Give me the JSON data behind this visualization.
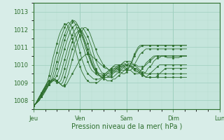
{
  "xlabel": "Pression niveau de la mer( hPa )",
  "bg_color": "#d8ede8",
  "plot_bg_color": "#c5e5dc",
  "line_color": "#2d6e2d",
  "grid_major_color": "#9ecfbe",
  "grid_minor_color": "#b8ddd0",
  "ylim": [
    1007.5,
    1013.5
  ],
  "yticks": [
    1008,
    1009,
    1010,
    1011,
    1012,
    1013
  ],
  "day_labels": [
    "Jeu",
    "Ven",
    "Sam",
    "Dim",
    "Lun"
  ],
  "day_positions": [
    0,
    24,
    48,
    72,
    96
  ],
  "total_hours": 120,
  "series": [
    [
      1007.7,
      1007.8,
      1008.0,
      1008.2,
      1008.4,
      1008.6,
      1008.8,
      1009.0,
      1009.1,
      1009.1,
      1009.2,
      1009.2,
      1009.1,
      1009.0,
      1008.9,
      1008.8,
      1008.8,
      1008.9,
      1009.1,
      1009.3,
      1009.5,
      1009.7,
      1009.9,
      1010.1,
      1010.3,
      1010.4,
      1010.5,
      1010.6,
      1010.6,
      1010.6,
      1010.5,
      1010.4,
      1010.3,
      1010.2,
      1010.1,
      1010.0,
      1009.9,
      1009.8,
      1009.8,
      1009.7,
      1009.7,
      1009.7,
      1009.7,
      1009.8,
      1009.9,
      1010.0,
      1010.1,
      1010.2,
      1010.2,
      1010.2,
      1010.2,
      1010.1,
      1010.0,
      1010.0,
      1009.9,
      1009.9,
      1009.9,
      1009.9,
      1010.0,
      1010.1,
      1010.2,
      1010.3,
      1010.4,
      1010.5,
      1010.5,
      1010.5,
      1010.5,
      1010.5,
      1010.5,
      1010.4,
      1010.4,
      1010.4,
      1010.4,
      1010.4,
      1010.4,
      1010.4,
      1010.5,
      1010.5,
      1010.5,
      1010.5
    ],
    [
      1007.7,
      1007.8,
      1008.0,
      1008.2,
      1008.4,
      1008.6,
      1008.8,
      1009.0,
      1009.1,
      1009.1,
      1009.2,
      1009.2,
      1009.1,
      1009.0,
      1008.9,
      1008.8,
      1008.9,
      1009.2,
      1009.5,
      1009.9,
      1010.3,
      1010.7,
      1011.1,
      1011.4,
      1011.7,
      1011.9,
      1012.1,
      1012.1,
      1012.0,
      1011.8,
      1011.5,
      1011.2,
      1010.9,
      1010.6,
      1010.4,
      1010.2,
      1010.0,
      1009.9,
      1009.8,
      1009.7,
      1009.6,
      1009.6,
      1009.6,
      1009.6,
      1009.7,
      1009.8,
      1009.9,
      1010.0,
      1010.0,
      1010.1,
      1010.1,
      1010.0,
      1010.0,
      1009.9,
      1009.8,
      1009.7,
      1009.6,
      1009.6,
      1009.5,
      1009.5,
      1009.5,
      1009.5,
      1009.5,
      1009.5,
      1009.5,
      1009.5,
      1009.5,
      1009.5,
      1009.5,
      1009.5,
      1009.5,
      1009.5,
      1009.5,
      1009.5,
      1009.5,
      1009.5,
      1009.5,
      1009.5,
      1009.5,
      1009.5
    ],
    [
      1007.7,
      1007.8,
      1008.0,
      1008.2,
      1008.4,
      1008.6,
      1008.7,
      1008.9,
      1009.0,
      1009.1,
      1009.1,
      1009.2,
      1009.1,
      1009.0,
      1008.9,
      1009.0,
      1009.3,
      1009.7,
      1010.1,
      1010.5,
      1010.9,
      1011.2,
      1011.5,
      1011.8,
      1012.0,
      1012.1,
      1012.0,
      1011.8,
      1011.6,
      1011.3,
      1011.0,
      1010.6,
      1010.3,
      1010.0,
      1009.8,
      1009.6,
      1009.5,
      1009.4,
      1009.4,
      1009.3,
      1009.3,
      1009.3,
      1009.4,
      1009.5,
      1009.6,
      1009.7,
      1009.8,
      1009.9,
      1010.0,
      1010.0,
      1010.0,
      1009.9,
      1009.8,
      1009.8,
      1009.7,
      1009.6,
      1009.5,
      1009.4,
      1009.3,
      1009.3,
      1009.3,
      1009.3,
      1009.3,
      1009.3,
      1009.3,
      1009.3,
      1009.3,
      1009.3,
      1009.3,
      1009.3,
      1009.3,
      1009.3,
      1009.3,
      1009.3,
      1009.3,
      1009.3,
      1009.3,
      1009.3,
      1009.3,
      1009.3
    ],
    [
      1007.7,
      1007.8,
      1008.0,
      1008.2,
      1008.4,
      1008.5,
      1008.7,
      1008.9,
      1009.0,
      1009.1,
      1009.1,
      1009.1,
      1009.0,
      1009.0,
      1009.1,
      1009.4,
      1009.8,
      1010.2,
      1010.6,
      1011.0,
      1011.3,
      1011.6,
      1011.8,
      1011.9,
      1012.0,
      1011.9,
      1011.7,
      1011.5,
      1011.2,
      1010.8,
      1010.5,
      1010.1,
      1009.8,
      1009.6,
      1009.4,
      1009.3,
      1009.2,
      1009.2,
      1009.1,
      1009.1,
      1009.1,
      1009.2,
      1009.2,
      1009.3,
      1009.4,
      1009.5,
      1009.6,
      1009.7,
      1009.8,
      1009.9,
      1009.9,
      1009.9,
      1009.8,
      1009.8,
      1009.7,
      1009.6,
      1009.5,
      1009.4,
      1009.3,
      1009.3,
      1009.3,
      1009.3,
      1009.3,
      1009.3,
      1009.4,
      1009.5,
      1009.6,
      1009.7,
      1009.8,
      1009.8,
      1009.8,
      1009.8,
      1009.8,
      1009.8,
      1009.8,
      1009.8,
      1009.8,
      1009.8,
      1009.8,
      1009.8
    ],
    [
      1007.7,
      1007.8,
      1008.0,
      1008.2,
      1008.3,
      1008.5,
      1008.7,
      1008.8,
      1009.0,
      1009.0,
      1009.1,
      1009.1,
      1009.1,
      1009.2,
      1009.5,
      1009.9,
      1010.3,
      1010.7,
      1011.1,
      1011.4,
      1011.7,
      1011.9,
      1012.1,
      1012.1,
      1012.0,
      1011.8,
      1011.5,
      1011.2,
      1010.9,
      1010.5,
      1010.2,
      1009.9,
      1009.7,
      1009.5,
      1009.4,
      1009.3,
      1009.3,
      1009.3,
      1009.3,
      1009.3,
      1009.4,
      1009.5,
      1009.6,
      1009.7,
      1009.8,
      1009.9,
      1010.0,
      1010.0,
      1010.0,
      1010.0,
      1009.9,
      1009.9,
      1009.8,
      1009.7,
      1009.6,
      1009.5,
      1009.4,
      1009.4,
      1009.3,
      1009.4,
      1009.5,
      1009.6,
      1009.7,
      1009.8,
      1009.9,
      1010.0,
      1010.0,
      1010.0,
      1010.0,
      1010.0,
      1010.0,
      1010.0,
      1010.0,
      1010.0,
      1010.0,
      1010.0,
      1010.0,
      1010.0,
      1010.0,
      1010.0
    ],
    [
      1007.7,
      1007.8,
      1007.9,
      1008.1,
      1008.3,
      1008.5,
      1008.6,
      1008.8,
      1008.9,
      1009.0,
      1009.1,
      1009.2,
      1009.4,
      1009.7,
      1010.1,
      1010.5,
      1010.9,
      1011.3,
      1011.6,
      1011.9,
      1012.1,
      1012.2,
      1012.3,
      1012.2,
      1012.0,
      1011.7,
      1011.4,
      1011.1,
      1010.7,
      1010.4,
      1010.1,
      1009.8,
      1009.6,
      1009.5,
      1009.4,
      1009.3,
      1009.3,
      1009.3,
      1009.3,
      1009.4,
      1009.5,
      1009.6,
      1009.7,
      1009.8,
      1009.9,
      1010.0,
      1010.1,
      1010.1,
      1010.0,
      1010.0,
      1009.9,
      1009.8,
      1009.7,
      1009.6,
      1009.6,
      1009.5,
      1009.5,
      1009.5,
      1009.6,
      1009.8,
      1009.9,
      1010.0,
      1010.2,
      1010.3,
      1010.4,
      1010.4,
      1010.5,
      1010.5,
      1010.5,
      1010.5,
      1010.5,
      1010.5,
      1010.5,
      1010.5,
      1010.5,
      1010.5,
      1010.5,
      1010.5,
      1010.5,
      1010.5
    ],
    [
      1007.7,
      1007.8,
      1007.9,
      1008.1,
      1008.2,
      1008.4,
      1008.6,
      1008.7,
      1008.9,
      1009.0,
      1009.2,
      1009.4,
      1009.8,
      1010.2,
      1010.6,
      1011.0,
      1011.4,
      1011.7,
      1012.0,
      1012.2,
      1012.4,
      1012.5,
      1012.4,
      1012.2,
      1011.9,
      1011.6,
      1011.3,
      1010.9,
      1010.6,
      1010.3,
      1010.0,
      1009.8,
      1009.7,
      1009.6,
      1009.5,
      1009.5,
      1009.4,
      1009.4,
      1009.5,
      1009.5,
      1009.6,
      1009.7,
      1009.8,
      1009.9,
      1010.0,
      1010.0,
      1010.0,
      1009.9,
      1009.8,
      1009.7,
      1009.7,
      1009.6,
      1009.5,
      1009.5,
      1009.5,
      1009.6,
      1009.8,
      1009.9,
      1010.1,
      1010.2,
      1010.3,
      1010.4,
      1010.5,
      1010.5,
      1010.5,
      1010.5,
      1010.5,
      1010.5,
      1010.5,
      1010.5,
      1010.5,
      1010.5,
      1010.5,
      1010.5,
      1010.5,
      1010.5,
      1010.5,
      1010.5,
      1010.5,
      1010.5
    ],
    [
      1007.7,
      1007.8,
      1007.9,
      1008.1,
      1008.2,
      1008.4,
      1008.5,
      1008.7,
      1008.9,
      1009.1,
      1009.4,
      1009.8,
      1010.2,
      1010.6,
      1011.0,
      1011.4,
      1011.7,
      1012.0,
      1012.2,
      1012.4,
      1012.5,
      1012.4,
      1012.2,
      1011.9,
      1011.6,
      1011.2,
      1010.9,
      1010.5,
      1010.2,
      1009.9,
      1009.7,
      1009.6,
      1009.5,
      1009.4,
      1009.4,
      1009.4,
      1009.4,
      1009.5,
      1009.6,
      1009.7,
      1009.8,
      1009.9,
      1010.0,
      1010.0,
      1010.0,
      1009.9,
      1009.9,
      1009.8,
      1009.7,
      1009.7,
      1009.7,
      1009.8,
      1010.0,
      1010.2,
      1010.4,
      1010.6,
      1010.7,
      1010.8,
      1010.9,
      1010.9,
      1010.9,
      1010.9,
      1010.9,
      1010.9,
      1010.9,
      1010.9,
      1010.9,
      1010.9,
      1010.9,
      1010.9,
      1010.9,
      1010.9,
      1010.9,
      1010.9,
      1010.9,
      1010.9,
      1010.9,
      1010.9,
      1010.9,
      1010.9
    ],
    [
      1007.7,
      1007.8,
      1007.9,
      1008.0,
      1008.2,
      1008.3,
      1008.5,
      1008.7,
      1009.0,
      1009.4,
      1009.8,
      1010.3,
      1010.7,
      1011.1,
      1011.5,
      1011.8,
      1012.1,
      1012.3,
      1012.4,
      1012.3,
      1012.1,
      1011.8,
      1011.5,
      1011.1,
      1010.7,
      1010.3,
      1010.0,
      1009.7,
      1009.5,
      1009.4,
      1009.3,
      1009.2,
      1009.2,
      1009.2,
      1009.2,
      1009.3,
      1009.4,
      1009.5,
      1009.6,
      1009.7,
      1009.8,
      1009.9,
      1009.9,
      1009.9,
      1009.8,
      1009.7,
      1009.7,
      1009.7,
      1009.7,
      1009.8,
      1010.0,
      1010.2,
      1010.5,
      1010.7,
      1010.9,
      1011.0,
      1011.1,
      1011.1,
      1011.1,
      1011.1,
      1011.1,
      1011.1,
      1011.1,
      1011.1,
      1011.1,
      1011.1,
      1011.1,
      1011.1,
      1011.1,
      1011.1,
      1011.1,
      1011.1,
      1011.1,
      1011.1,
      1011.1,
      1011.1,
      1011.1,
      1011.1,
      1011.1,
      1011.1
    ],
    [
      1007.7,
      1007.8,
      1007.9,
      1008.0,
      1008.2,
      1008.4,
      1008.6,
      1009.0,
      1009.4,
      1009.9,
      1010.4,
      1010.8,
      1011.2,
      1011.6,
      1011.9,
      1012.1,
      1012.3,
      1012.3,
      1012.1,
      1011.8,
      1011.5,
      1011.1,
      1010.7,
      1010.3,
      1009.9,
      1009.6,
      1009.4,
      1009.2,
      1009.1,
      1009.0,
      1009.0,
      1009.0,
      1009.0,
      1009.0,
      1009.1,
      1009.2,
      1009.3,
      1009.4,
      1009.5,
      1009.6,
      1009.7,
      1009.8,
      1009.8,
      1009.8,
      1009.7,
      1009.6,
      1009.5,
      1009.5,
      1009.6,
      1009.8,
      1010.0,
      1010.3,
      1010.6,
      1010.8,
      1011.0,
      1011.1,
      1011.1,
      1011.1,
      1011.1,
      1011.1,
      1011.1,
      1011.1,
      1011.1,
      1011.1,
      1011.1,
      1011.1,
      1011.1,
      1011.1,
      1011.1,
      1011.1,
      1011.1,
      1011.1,
      1011.1,
      1011.1,
      1011.1,
      1011.1,
      1011.1,
      1011.1,
      1011.1,
      1011.1
    ]
  ]
}
